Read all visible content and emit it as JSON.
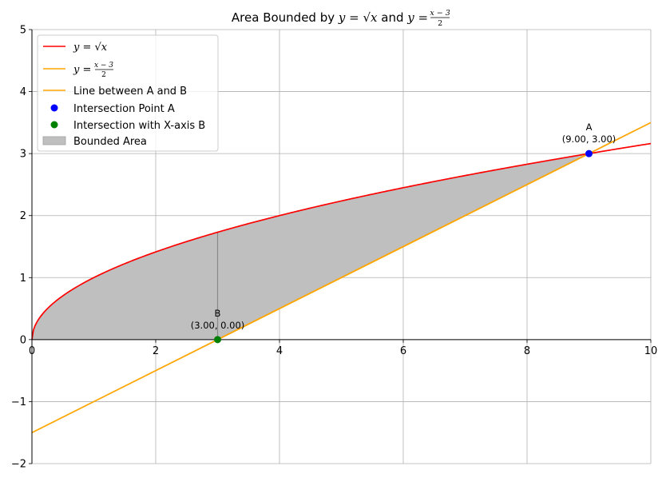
{
  "chart_data": {
    "type": "line",
    "title": {
      "prefix": "Area Bounded by ",
      "eq1": "y = √x",
      "joiner": " and ",
      "eq2_lhs": "y = ",
      "eq2_num": "x − 3",
      "eq2_den": "2"
    },
    "xlim": [
      0,
      10
    ],
    "ylim": [
      -2,
      5
    ],
    "x_ticks": [
      0,
      2,
      4,
      6,
      8,
      10
    ],
    "y_ticks": [
      -2,
      -1,
      0,
      1,
      2,
      3,
      4,
      5
    ],
    "x_tick_labels": [
      "0",
      "2",
      "4",
      "6",
      "8",
      "10"
    ],
    "y_tick_labels": [
      "−2",
      "−1",
      "0",
      "1",
      "2",
      "3",
      "4",
      "5"
    ],
    "grid": true,
    "legend_position": "top-left",
    "series": [
      {
        "name": "y = √x",
        "function": "sqrt(x)",
        "x_range": [
          0,
          10
        ],
        "color": "#ff0000"
      },
      {
        "name": "y = (x − 3)/2",
        "function": "(x-3)/2",
        "x_range": [
          0,
          10
        ],
        "color": "#ffa500"
      },
      {
        "name": "Line between A and B",
        "points": [
          [
            3,
            0
          ],
          [
            9,
            3
          ]
        ],
        "color": "#ffa500"
      }
    ],
    "points": [
      {
        "name": "Intersection Point A",
        "label": "A",
        "coords": "(9.00, 3.00)",
        "x": 9,
        "y": 3,
        "color": "#0000ff"
      },
      {
        "name": "Intersection with X-axis B",
        "label": "B",
        "coords": "(3.00, 0.00)",
        "x": 3,
        "y": 0,
        "color": "#008000"
      }
    ],
    "area": {
      "name": "Bounded Area",
      "x_range": [
        0,
        9
      ],
      "upper": "sqrt(x)",
      "lower": "max(0, (x-3)/2)",
      "color": "#bfbfbf"
    },
    "vertical_line": {
      "x": 3,
      "color": "#888888"
    },
    "legend": [
      {
        "label": "y = √x",
        "kind": "line",
        "color": "#ff0000"
      },
      {
        "label_lhs": "y = ",
        "label_num": "x − 3",
        "label_den": "2",
        "kind": "line",
        "color": "#ffa500"
      },
      {
        "label": "Line between A and B",
        "kind": "line",
        "color": "#ffa500"
      },
      {
        "label": "Intersection Point A",
        "kind": "marker",
        "color": "#0000ff"
      },
      {
        "label": "Intersection with X-axis B",
        "kind": "marker",
        "color": "#008000"
      },
      {
        "label": "Bounded Area",
        "kind": "patch",
        "color": "#bfbfbf"
      }
    ]
  }
}
